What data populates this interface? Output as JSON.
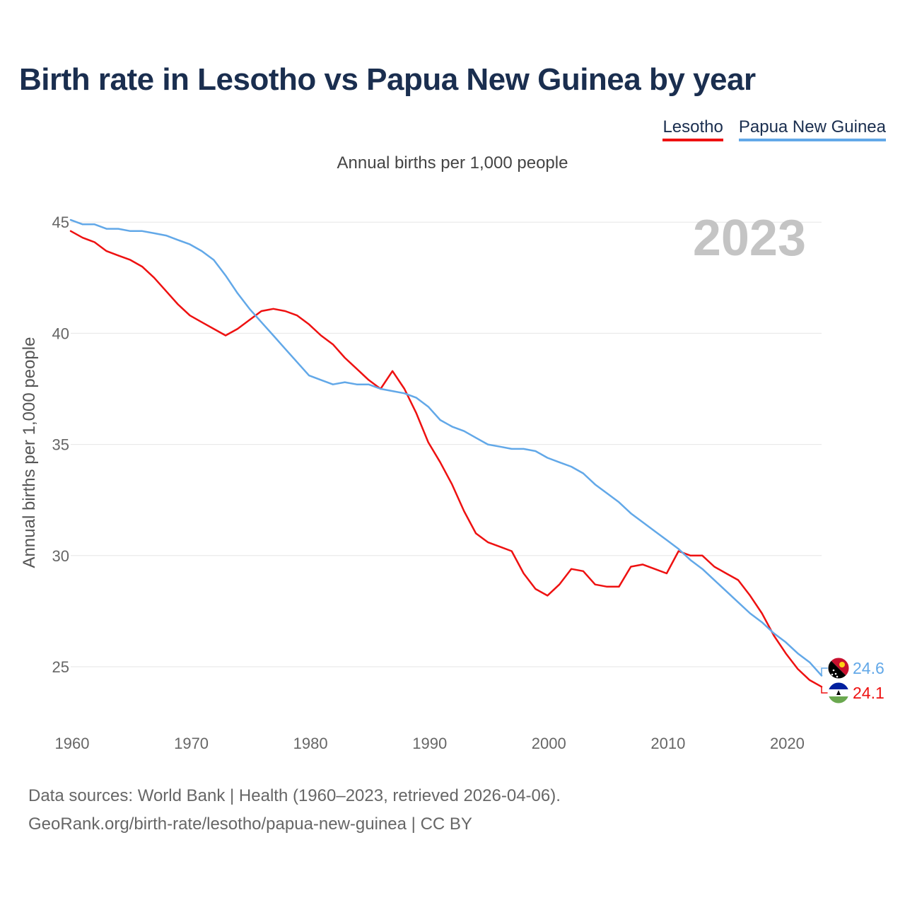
{
  "header": {
    "title": "Birth rate in Lesotho vs Papua New Guinea by year",
    "subtitle": "Annual births per 1,000 people"
  },
  "legend": [
    {
      "name": "Lesotho",
      "color": "#ee1111"
    },
    {
      "name": "Papua New Guinea",
      "color": "#62a8e8"
    }
  ],
  "footer": {
    "line1": "Data sources: World Bank | Health (1960–2023, retrieved 2026-04-06).",
    "line2": "GeoRank.org/birth-rate/lesotho/papua-new-guinea | CC BY"
  },
  "chart_data": {
    "type": "line",
    "title": "Birth rate in Lesotho vs Papua New Guinea by year",
    "subtitle": "Annual births per 1,000 people",
    "xlabel": "",
    "ylabel": "Annual births per 1,000 people",
    "current_year_label": "2023",
    "xlim": [
      1960,
      2023
    ],
    "ylim": [
      23,
      46
    ],
    "x_ticks": [
      1960,
      1970,
      1980,
      1990,
      2000,
      2010,
      2020
    ],
    "y_ticks": [
      25,
      30,
      35,
      40,
      45
    ],
    "grid": true,
    "legend_position": "top-right",
    "x": [
      1960,
      1961,
      1962,
      1963,
      1964,
      1965,
      1966,
      1967,
      1968,
      1969,
      1970,
      1971,
      1972,
      1973,
      1974,
      1975,
      1976,
      1977,
      1978,
      1979,
      1980,
      1981,
      1982,
      1983,
      1984,
      1985,
      1986,
      1987,
      1988,
      1989,
      1990,
      1991,
      1992,
      1993,
      1994,
      1995,
      1996,
      1997,
      1998,
      1999,
      2000,
      2001,
      2002,
      2003,
      2004,
      2005,
      2006,
      2007,
      2008,
      2009,
      2010,
      2011,
      2012,
      2013,
      2014,
      2015,
      2016,
      2017,
      2018,
      2019,
      2020,
      2021,
      2022,
      2023
    ],
    "series": [
      {
        "name": "Lesotho",
        "color": "#ee1111",
        "end_label": "24.1",
        "values": [
          44.6,
          44.3,
          44.1,
          43.7,
          43.5,
          43.3,
          43.0,
          42.5,
          41.9,
          41.3,
          40.8,
          40.5,
          40.2,
          39.9,
          40.2,
          40.6,
          41.0,
          41.1,
          41.0,
          40.8,
          40.4,
          39.9,
          39.5,
          38.9,
          38.4,
          37.9,
          37.5,
          38.3,
          37.5,
          36.4,
          35.1,
          34.2,
          33.2,
          32.0,
          31.0,
          30.6,
          30.4,
          30.2,
          29.2,
          28.5,
          28.2,
          28.7,
          29.4,
          29.3,
          28.7,
          28.6,
          28.6,
          29.5,
          29.6,
          29.4,
          29.2,
          30.2,
          30.0,
          30.0,
          29.5,
          29.2,
          28.9,
          28.2,
          27.4,
          26.4,
          25.6,
          24.9,
          24.4,
          24.1
        ]
      },
      {
        "name": "Papua New Guinea",
        "color": "#62a8e8",
        "end_label": "24.6",
        "values": [
          45.1,
          44.9,
          44.9,
          44.7,
          44.7,
          44.6,
          44.6,
          44.5,
          44.4,
          44.2,
          44.0,
          43.7,
          43.3,
          42.6,
          41.8,
          41.1,
          40.5,
          39.9,
          39.3,
          38.7,
          38.1,
          37.9,
          37.7,
          37.8,
          37.7,
          37.7,
          37.5,
          37.4,
          37.3,
          37.1,
          36.7,
          36.1,
          35.8,
          35.6,
          35.3,
          35.0,
          34.9,
          34.8,
          34.8,
          34.7,
          34.4,
          34.2,
          34.0,
          33.7,
          33.2,
          32.8,
          32.4,
          31.9,
          31.5,
          31.1,
          30.7,
          30.3,
          29.8,
          29.4,
          28.9,
          28.4,
          27.9,
          27.4,
          27.0,
          26.5,
          26.1,
          25.6,
          25.2,
          24.6
        ]
      }
    ]
  }
}
